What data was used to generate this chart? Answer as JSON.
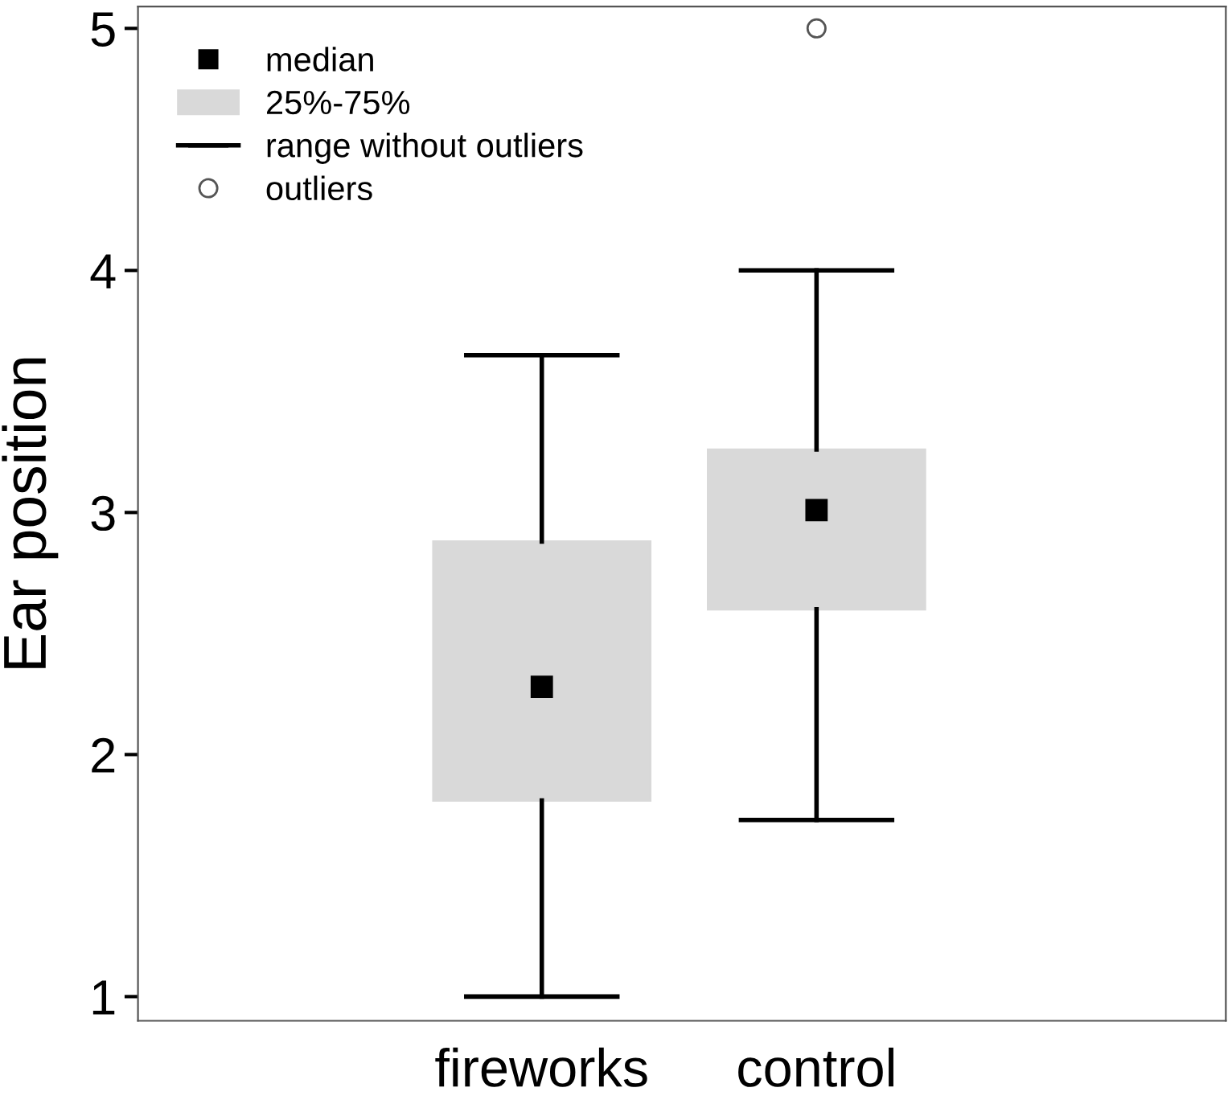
{
  "chart_data": {
    "type": "box",
    "ylabel": "Ear position",
    "categories": [
      "fireworks",
      "control"
    ],
    "boxes": [
      {
        "low": 1,
        "q1": 1.81,
        "median": 2.28,
        "q3": 2.88,
        "high": 3.65
      },
      {
        "low": 1.73,
        "q1": 2.6,
        "median": 3.01,
        "q3": 3.26,
        "high": 4,
        "outliers": [
          5
        ]
      }
    ],
    "color": "#d9d9d9",
    "ylim": [
      0.9,
      5.09
    ],
    "yticks": [
      1,
      2,
      3,
      4,
      5
    ],
    "grid": false,
    "annotations": [
      "median",
      "25%-75%",
      "range without outliers",
      "outliers"
    ]
  }
}
